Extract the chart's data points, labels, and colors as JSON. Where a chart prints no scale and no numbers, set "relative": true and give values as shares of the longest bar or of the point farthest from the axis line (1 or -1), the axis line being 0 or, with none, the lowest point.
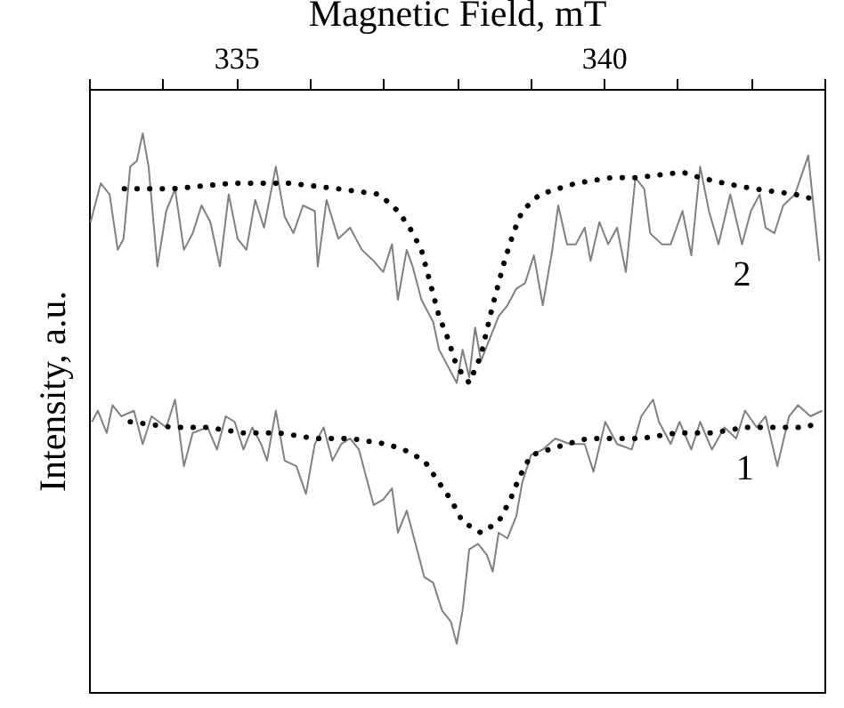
{
  "chart_data": {
    "type": "line",
    "relative": true,
    "xlabel": "Magnetic Field, mT",
    "ylabel": "Intensity, a.u.",
    "xlim": [
      333,
      343
    ],
    "xticks": [
      {
        "value": 333,
        "label": null
      },
      {
        "value": 334,
        "label": null
      },
      335,
      {
        "value": 336,
        "label": null
      },
      {
        "value": 337,
        "label": null
      },
      {
        "value": 338,
        "label": null
      },
      {
        "value": 339,
        "label": null
      },
      340,
      {
        "value": 341,
        "label": null
      },
      {
        "value": 342,
        "label": null
      },
      {
        "value": 343,
        "label": null
      }
    ],
    "line_style": "solid",
    "series": [
      {
        "name": "1",
        "color": "#808080",
        "x": [
          333.04,
          333.12,
          333.24,
          333.32,
          333.44,
          333.61,
          333.73,
          333.85,
          334.05,
          334.17,
          334.29,
          334.41,
          334.61,
          334.74,
          334.86,
          334.98,
          335.1,
          335.22,
          335.34,
          335.42,
          335.54,
          335.66,
          335.82,
          335.95,
          336.07,
          336.19,
          336.31,
          336.43,
          336.55,
          336.67,
          336.79,
          336.87,
          337.0,
          337.12,
          337.2,
          337.32,
          337.44,
          337.56,
          337.68,
          337.8,
          337.92,
          338.0,
          338.08,
          338.17,
          338.29,
          338.41,
          338.49,
          338.57,
          338.69,
          338.81,
          338.89,
          339.01,
          339.17,
          339.34,
          339.54,
          339.74,
          339.86,
          340.02,
          340.18,
          340.38,
          340.51,
          340.67,
          340.75,
          340.91,
          341.03,
          341.19,
          341.31,
          341.47,
          341.64,
          341.8,
          341.92,
          342.08,
          342.2,
          342.36,
          342.52,
          342.64,
          342.81,
          342.97
        ],
        "values": [
          -0.6,
          -0.58,
          -0.62,
          -0.57,
          -0.59,
          -0.58,
          -0.64,
          -0.59,
          -0.61,
          -0.56,
          -0.68,
          -0.62,
          -0.61,
          -0.65,
          -0.59,
          -0.6,
          -0.65,
          -0.61,
          -0.64,
          -0.67,
          -0.58,
          -0.67,
          -0.68,
          -0.73,
          -0.64,
          -0.61,
          -0.67,
          -0.64,
          -0.63,
          -0.65,
          -0.71,
          -0.75,
          -0.74,
          -0.72,
          -0.8,
          -0.76,
          -0.82,
          -0.88,
          -0.89,
          -0.94,
          -0.96,
          -1.0,
          -0.94,
          -0.83,
          -0.82,
          -0.84,
          -0.87,
          -0.8,
          -0.81,
          -0.77,
          -0.71,
          -0.66,
          -0.65,
          -0.63,
          -0.64,
          -0.64,
          -0.69,
          -0.6,
          -0.64,
          -0.65,
          -0.59,
          -0.56,
          -0.6,
          -0.64,
          -0.6,
          -0.65,
          -0.6,
          -0.65,
          -0.61,
          -0.63,
          -0.58,
          -0.61,
          -0.59,
          -0.68,
          -0.59,
          -0.57,
          -0.59,
          -0.58
        ]
      },
      {
        "color": "#000000",
        "line_style": "dotted",
        "x": [
          333.56,
          334.13,
          334.61,
          335.1,
          335.58,
          336.07,
          336.55,
          337.04,
          337.28,
          337.56,
          337.76,
          337.92,
          338.08,
          338.33,
          338.57,
          338.73,
          338.85,
          339.01,
          339.26,
          339.5,
          339.78,
          340.02,
          340.51,
          340.99,
          341.47,
          341.92,
          342.44,
          342.73,
          342.97
        ],
        "values": [
          -0.6,
          -0.61,
          -0.61,
          -0.62,
          -0.62,
          -0.63,
          -0.63,
          -0.64,
          -0.65,
          -0.67,
          -0.71,
          -0.74,
          -0.78,
          -0.8,
          -0.78,
          -0.74,
          -0.7,
          -0.66,
          -0.65,
          -0.64,
          -0.63,
          -0.63,
          -0.63,
          -0.62,
          -0.62,
          -0.61,
          -0.61,
          -0.61,
          -0.6
        ]
      },
      {
        "name": "2",
        "color": "#808080",
        "x": [
          333.02,
          333.16,
          333.28,
          333.39,
          333.47,
          333.56,
          333.65,
          333.73,
          333.81,
          333.93,
          334.05,
          334.17,
          334.29,
          334.41,
          334.53,
          334.65,
          334.78,
          334.9,
          335.02,
          335.14,
          335.26,
          335.38,
          335.54,
          335.66,
          335.78,
          335.91,
          336.07,
          336.11,
          336.23,
          336.39,
          336.55,
          336.71,
          336.87,
          337.0,
          337.12,
          337.2,
          337.32,
          337.4,
          337.52,
          337.68,
          337.76,
          337.88,
          338.0,
          338.08,
          338.17,
          338.25,
          338.33,
          338.45,
          338.57,
          338.69,
          338.81,
          338.93,
          339.05,
          339.17,
          339.3,
          339.38,
          339.5,
          339.62,
          339.74,
          339.82,
          339.94,
          340.06,
          340.18,
          340.3,
          340.43,
          340.55,
          340.63,
          340.79,
          340.91,
          341.07,
          341.19,
          341.31,
          341.43,
          341.56,
          341.72,
          341.88,
          342.0,
          342.12,
          342.2,
          342.32,
          342.44,
          342.6,
          342.78,
          342.93
        ],
        "values": [
          -0.24,
          -0.17,
          -0.19,
          -0.29,
          -0.27,
          -0.14,
          -0.13,
          -0.08,
          -0.14,
          -0.32,
          -0.22,
          -0.18,
          -0.29,
          -0.26,
          -0.21,
          -0.24,
          -0.32,
          -0.19,
          -0.27,
          -0.29,
          -0.2,
          -0.25,
          -0.14,
          -0.23,
          -0.26,
          -0.21,
          -0.22,
          -0.32,
          -0.2,
          -0.27,
          -0.25,
          -0.29,
          -0.31,
          -0.33,
          -0.28,
          -0.38,
          -0.29,
          -0.32,
          -0.38,
          -0.42,
          -0.47,
          -0.5,
          -0.53,
          -0.47,
          -0.52,
          -0.43,
          -0.49,
          -0.45,
          -0.41,
          -0.39,
          -0.36,
          -0.35,
          -0.3,
          -0.39,
          -0.29,
          -0.21,
          -0.28,
          -0.28,
          -0.25,
          -0.31,
          -0.24,
          -0.28,
          -0.25,
          -0.33,
          -0.16,
          -0.18,
          -0.26,
          -0.28,
          -0.28,
          -0.22,
          -0.3,
          -0.14,
          -0.22,
          -0.28,
          -0.19,
          -0.28,
          -0.22,
          -0.19,
          -0.25,
          -0.26,
          -0.21,
          -0.19,
          -0.12,
          -0.31
        ]
      },
      {
        "color": "#000000",
        "line_style": "dotted",
        "x": [
          333.48,
          333.73,
          334.13,
          334.94,
          335.74,
          336.39,
          336.95,
          337.2,
          337.36,
          337.52,
          337.64,
          337.76,
          337.88,
          338.0,
          338.17,
          338.33,
          338.49,
          338.65,
          338.77,
          338.89,
          339.13,
          339.62,
          340.1,
          340.43,
          341.07,
          341.31,
          341.64,
          342.04,
          342.6,
          342.89
        ],
        "values": [
          -0.18,
          -0.18,
          -0.18,
          -0.17,
          -0.17,
          -0.18,
          -0.19,
          -0.22,
          -0.25,
          -0.29,
          -0.35,
          -0.41,
          -0.45,
          -0.5,
          -0.53,
          -0.48,
          -0.39,
          -0.31,
          -0.26,
          -0.22,
          -0.19,
          -0.17,
          -0.16,
          -0.16,
          -0.15,
          -0.16,
          -0.17,
          -0.18,
          -0.19,
          -0.2
        ]
      }
    ]
  }
}
